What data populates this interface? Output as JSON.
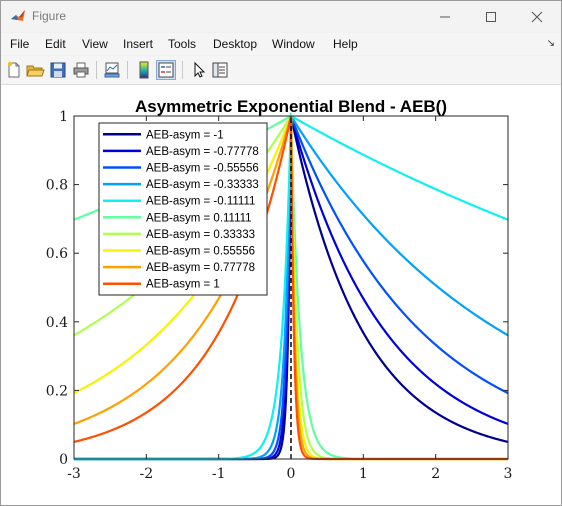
{
  "window": {
    "title": "Figure",
    "controls": [
      "minimize",
      "maximize",
      "close"
    ]
  },
  "menubar": {
    "items": [
      "File",
      "Edit",
      "View",
      "Insert",
      "Tools",
      "Desktop",
      "Window",
      "Help"
    ],
    "corner_glyph": "↘"
  },
  "toolbar": {
    "buttons": [
      {
        "name": "new-figure",
        "icon": "new-file-icon"
      },
      {
        "name": "open-file",
        "icon": "folder-open-icon"
      },
      {
        "name": "save-figure",
        "icon": "save-icon"
      },
      {
        "name": "print-figure",
        "icon": "printer-icon"
      },
      {
        "name": "link-plot",
        "icon": "link-plot-icon"
      },
      {
        "name": "insert-colorbar",
        "icon": "colorbar-icon"
      },
      {
        "name": "insert-legend",
        "icon": "legend-icon",
        "pressed": true
      },
      {
        "name": "edit-plot",
        "icon": "pointer-arrow-icon"
      },
      {
        "name": "property-inspector",
        "icon": "property-inspector-icon"
      }
    ]
  },
  "chart_data": {
    "type": "line",
    "title": "Asymmetric Exponential Blend - AEB()",
    "xlabel": "",
    "ylabel": "",
    "xlim": [
      -3,
      3
    ],
    "ylim": [
      0,
      1
    ],
    "xticks": [
      -3,
      -2,
      -1,
      0,
      1,
      2,
      3
    ],
    "yticks": [
      0,
      0.2,
      0.4,
      0.6,
      0.8,
      1
    ],
    "xtick_labels": [
      "-3",
      "-2",
      "-1",
      "0",
      "1",
      "2",
      "3"
    ],
    "ytick_labels": [
      "0",
      "0.2",
      "0.4",
      "0.6",
      "0.8",
      "1"
    ],
    "grid": false,
    "legend_position": "top-left",
    "reference_line": {
      "x": 0,
      "style": "dashed",
      "color": "#000000"
    },
    "series": [
      {
        "name": "AEB-asym = -1",
        "color": "#00008f",
        "decay_left": 25,
        "decay_right": 1
      },
      {
        "name": "AEB-asym = -0.77778",
        "color": "#0000df",
        "decay_left": 20,
        "decay_right": 0.76
      },
      {
        "name": "AEB-asym = -0.55556",
        "color": "#0050ff",
        "decay_left": 16,
        "decay_right": 0.55
      },
      {
        "name": "AEB-asym = -0.33333",
        "color": "#00a0ff",
        "decay_left": 12,
        "decay_right": 0.34
      },
      {
        "name": "AEB-asym = -0.11111",
        "color": "#10f0f0",
        "decay_left": 8,
        "decay_right": 0.12
      },
      {
        "name": "AEB-asym = 0.11111",
        "color": "#60ffa0",
        "decay_left": 0.12,
        "decay_right": 8
      },
      {
        "name": "AEB-asym = 0.33333",
        "color": "#b0ff50",
        "decay_left": 0.34,
        "decay_right": 12
      },
      {
        "name": "AEB-asym = 0.55556",
        "color": "#f5f500",
        "decay_left": 0.55,
        "decay_right": 16
      },
      {
        "name": "AEB-asym = 0.77778",
        "color": "#ffa000",
        "decay_left": 0.76,
        "decay_right": 20
      },
      {
        "name": "AEB-asym = 1",
        "color": "#ff5000",
        "decay_left": 1,
        "decay_right": 25
      }
    ]
  }
}
